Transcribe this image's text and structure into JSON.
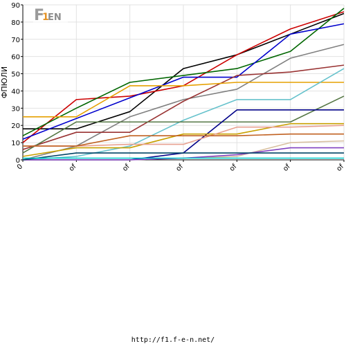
{
  "chart_data": {
    "type": "line",
    "ylabel": "ФПЮЛИ",
    "ylim": [
      0,
      90
    ],
    "yticks": [
      0,
      10,
      20,
      30,
      40,
      50,
      60,
      70,
      80,
      90
    ],
    "x": [
      0,
      1,
      2,
      3,
      4,
      5,
      6
    ],
    "xticklabels": [
      "0",
      "of",
      "of",
      "of",
      "of",
      "of",
      "of"
    ],
    "grid": true,
    "series": [
      {
        "color": "#000000",
        "values": [
          18,
          18,
          28,
          53,
          61,
          73,
          85
        ]
      },
      {
        "color": "#cc0000",
        "values": [
          10,
          35,
          37,
          43,
          61,
          76,
          86
        ]
      },
      {
        "color": "#006600",
        "values": [
          14,
          30,
          45,
          49,
          53,
          63,
          88
        ]
      },
      {
        "color": "#0000cc",
        "values": [
          12,
          24,
          36,
          48,
          48,
          73,
          79
        ]
      },
      {
        "color": "#808080",
        "values": [
          0,
          8,
          25,
          35,
          41,
          59,
          67
        ]
      },
      {
        "color": "#993333",
        "values": [
          6,
          16,
          16,
          34,
          49,
          51,
          55
        ]
      },
      {
        "color": "#e6a000",
        "values": [
          25,
          25,
          43,
          43,
          45,
          45,
          45
        ]
      },
      {
        "color": "#66c2cc",
        "values": [
          0,
          2,
          8,
          23,
          35,
          35,
          53
        ]
      },
      {
        "color": "#557744",
        "values": [
          4,
          22,
          22,
          22,
          22,
          22,
          37
        ]
      },
      {
        "color": "#000088",
        "values": [
          0,
          0,
          0,
          4,
          29,
          29,
          29
        ]
      },
      {
        "color": "#c8a000",
        "values": [
          2,
          7,
          7,
          15,
          15,
          21,
          21
        ]
      },
      {
        "color": "#e8a090",
        "values": [
          8,
          8,
          9,
          9,
          19,
          19,
          20
        ]
      },
      {
        "color": "#c06020",
        "values": [
          8,
          8,
          14,
          14,
          14,
          15,
          15
        ]
      },
      {
        "color": "#d8c0a0",
        "values": [
          0,
          0,
          0,
          1,
          2,
          10,
          11
        ]
      },
      {
        "color": "#8040c0",
        "values": [
          0,
          0,
          0,
          1,
          3,
          7,
          7
        ]
      },
      {
        "color": "#004466",
        "values": [
          0,
          4,
          4,
          4,
          4,
          4,
          4
        ]
      },
      {
        "color": "#00cccc",
        "values": [
          1,
          1,
          1,
          1,
          1,
          1,
          1
        ]
      }
    ]
  },
  "logo": {
    "text": "F1-EN"
  },
  "footer": {
    "url": "http://f1.f-e-n.net/"
  }
}
